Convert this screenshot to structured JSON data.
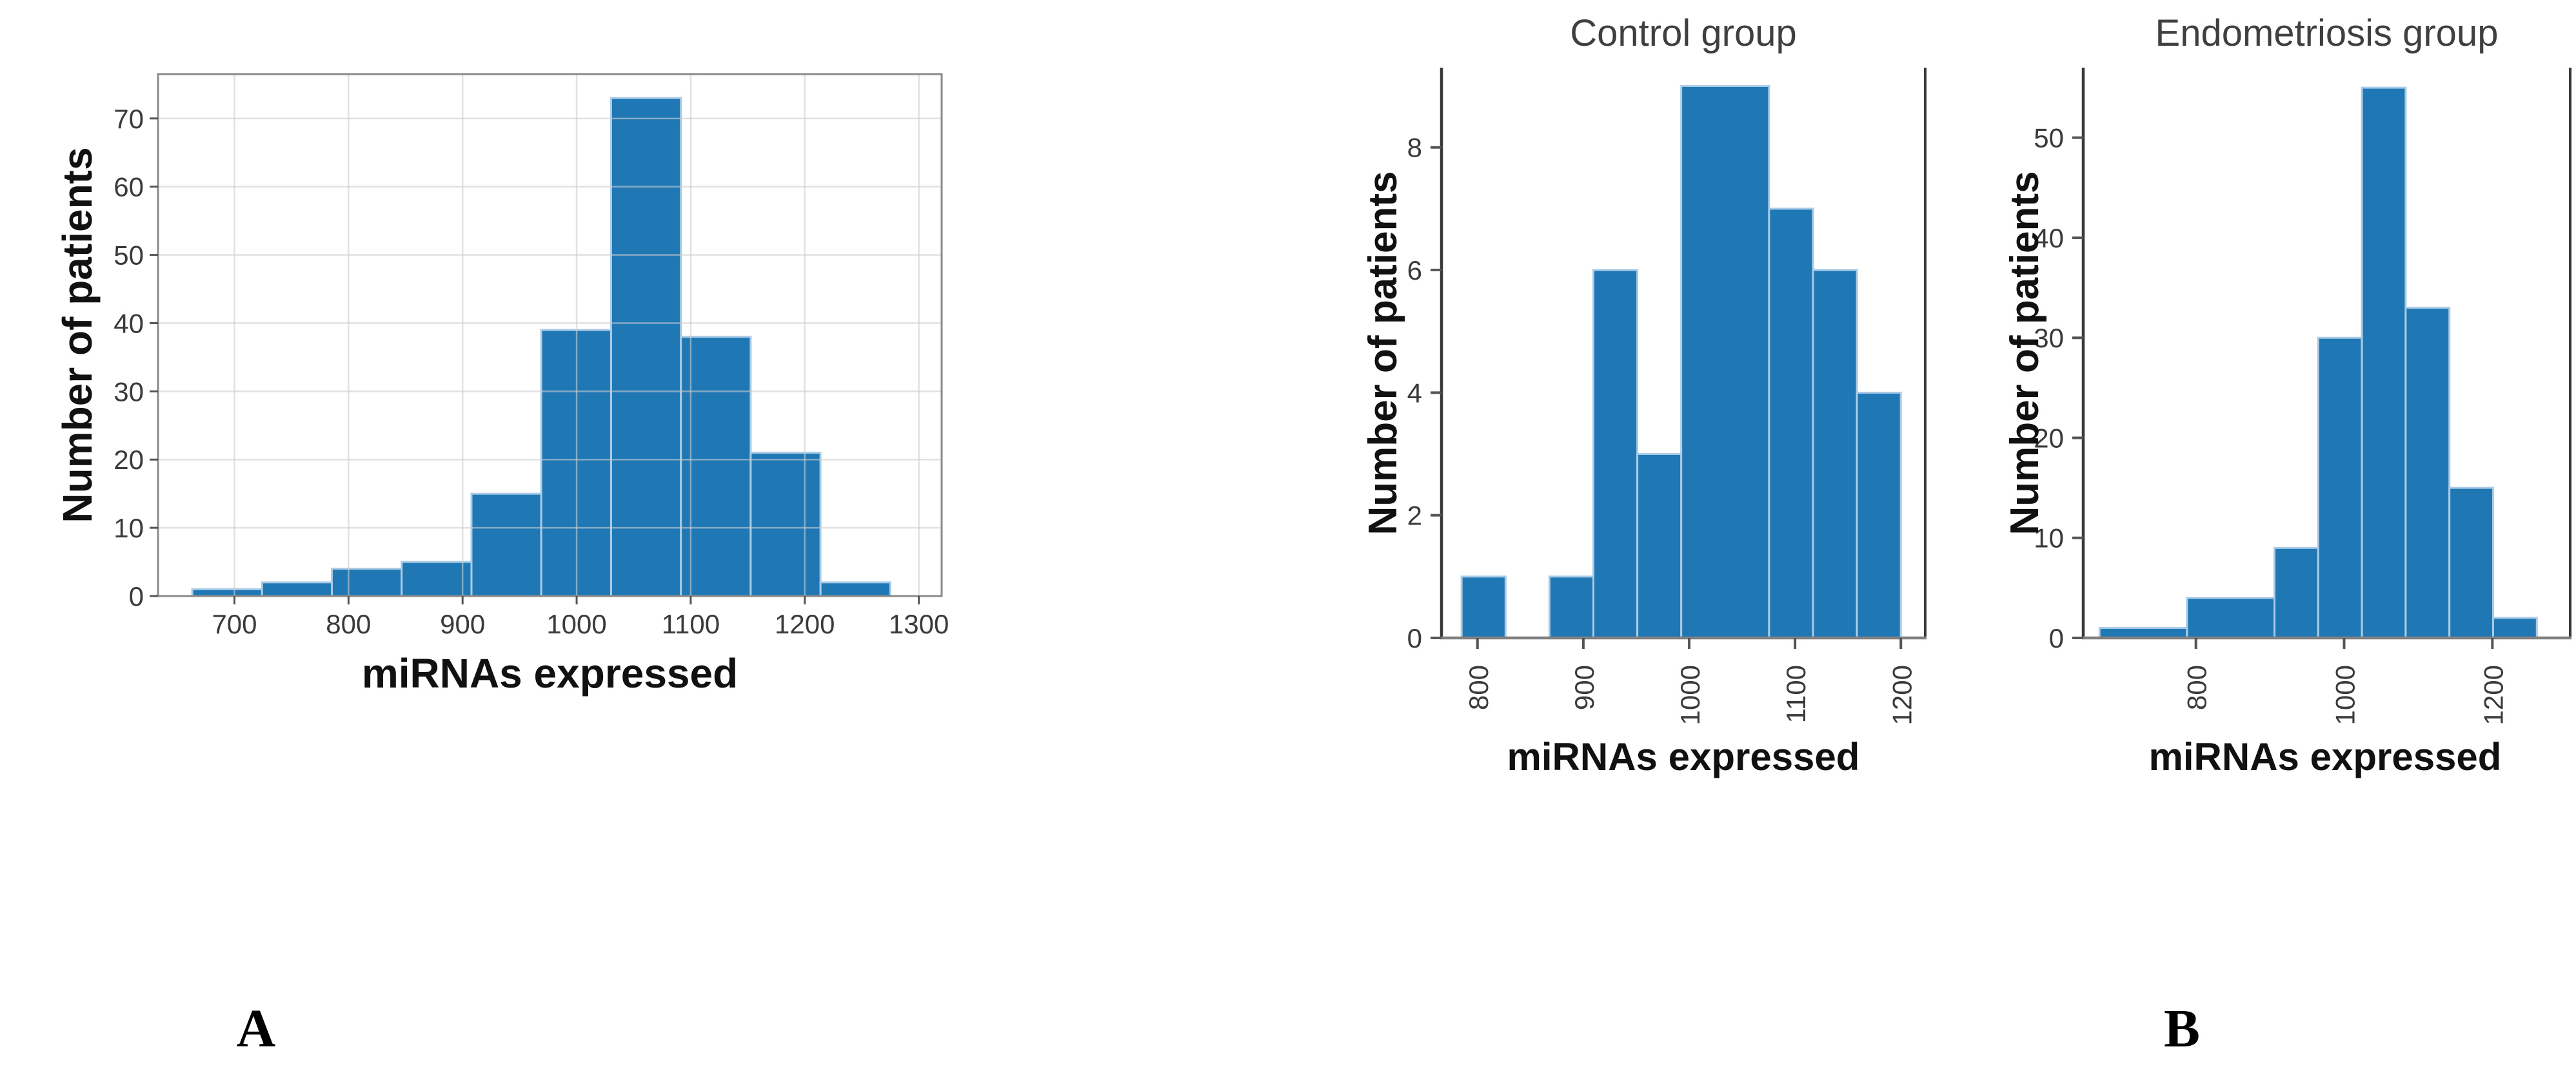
{
  "figure": {
    "panel_a_label": "A",
    "panel_b_label": "B"
  },
  "colors": {
    "bar_fill": "#1f77b4",
    "bar_edge": "#a9cbe6",
    "grid_over": "rgba(205,205,205,0.6)",
    "spine_gray": "#8a8a8a",
    "spine_dark": "#3a3a3a",
    "axis_gray": "#808080",
    "tick_mark": "#555555",
    "tick_text": "#3a3a3a"
  },
  "chart_data": [
    {
      "id": "combined",
      "type": "bar",
      "title": "",
      "xlabel": "miRNAs expressed",
      "ylabel": "Number of patients",
      "bin_start": 663,
      "bin_width": 61.2,
      "values": [
        1,
        2,
        4,
        5,
        15,
        39,
        73,
        38,
        21,
        2
      ],
      "x_ticks": [
        700,
        800,
        900,
        1000,
        1100,
        1200,
        1300
      ],
      "y_ticks": [
        0,
        10,
        20,
        30,
        40,
        50,
        60,
        70
      ],
      "xlim": [
        633,
        1320
      ],
      "ylim": [
        0,
        76.5
      ],
      "grid": true,
      "box": true,
      "rotate_x_labels": false
    },
    {
      "id": "control",
      "type": "bar",
      "title": "Control group",
      "xlabel": "miRNAs expressed",
      "ylabel": "Number of patients",
      "bin_start": 785,
      "bin_width": 41.5,
      "values": [
        1,
        0,
        1,
        6,
        3,
        9,
        9,
        7,
        6,
        4
      ],
      "x_ticks": [
        800,
        900,
        1000,
        1100,
        1200
      ],
      "y_ticks": [
        0,
        2,
        4,
        6,
        8
      ],
      "xlim": [
        766,
        1223
      ],
      "ylim": [
        0,
        9.3
      ],
      "grid": false,
      "box": false,
      "rotate_x_labels": true
    },
    {
      "id": "endometriosis",
      "type": "bar",
      "title": "Endometriosis group",
      "xlabel": "miRNAs expressed",
      "ylabel": "Number of patients",
      "bin_start": 670,
      "bin_width": 59,
      "values": [
        1,
        1,
        4,
        4,
        9,
        30,
        55,
        33,
        15,
        2
      ],
      "x_ticks": [
        800,
        1000,
        1200
      ],
      "y_ticks": [
        0,
        10,
        20,
        30,
        40,
        50
      ],
      "xlim": [
        648,
        1305
      ],
      "ylim": [
        0,
        57
      ],
      "grid": false,
      "box": false,
      "rotate_x_labels": true
    }
  ]
}
